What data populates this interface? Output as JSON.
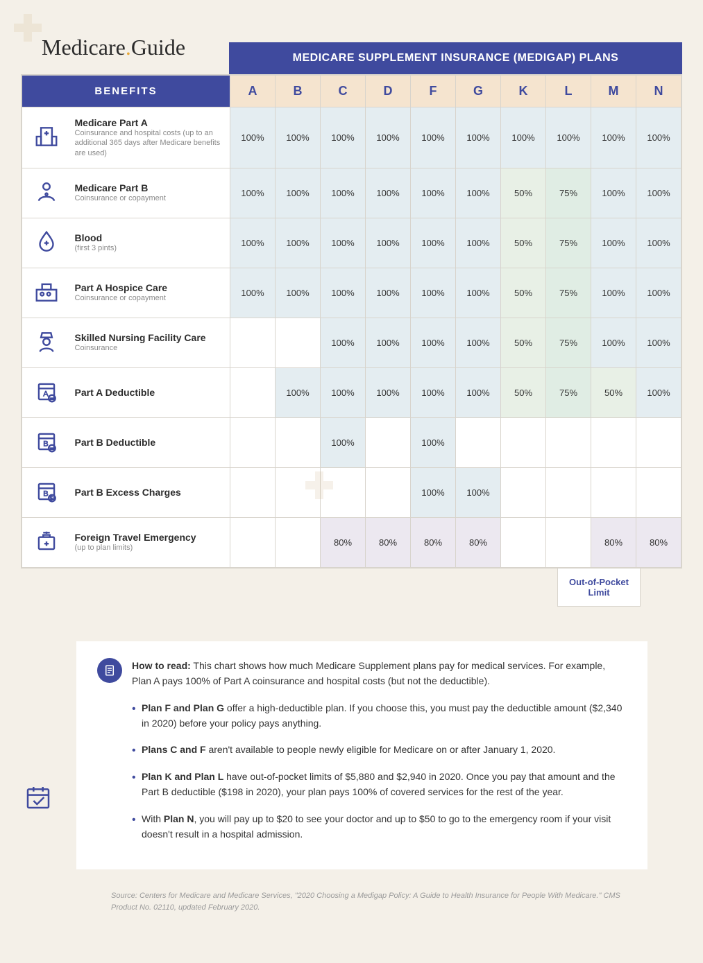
{
  "brand": {
    "name_pre": "Medicare",
    "name_post": "Guide"
  },
  "title": "MEDICARE SUPPLEMENT INSURANCE (MEDIGAP) PLANS",
  "colors": {
    "primary": "#3f4a9e",
    "header_bg": "#f5e4cf",
    "cell_100": "#e4edf1",
    "cell_50": "#e8f0e6",
    "cell_75": "#e0ede4",
    "cell_80": "#ece8f0",
    "page_bg": "#f4f0e8",
    "border": "#d8d4cc",
    "text_muted": "#8a8a8a",
    "accent_dot": "#e8a838"
  },
  "typography": {
    "logo_fontsize": 32,
    "title_fontsize": 16,
    "plan_header_fontsize": 18,
    "benefit_title_fontsize": 14,
    "benefit_sub_fontsize": 11,
    "cell_fontsize": 13,
    "notes_fontsize": 14,
    "source_fontsize": 11
  },
  "benefits_header": "BENEFITS",
  "plans": [
    "A",
    "B",
    "C",
    "D",
    "F",
    "G",
    "K",
    "L",
    "M",
    "N"
  ],
  "rows": [
    {
      "icon": "hospital",
      "title": "Medicare Part A",
      "sub": "Coinsurance and hospital costs (up to an additional 365 days after Medicare benefits are used)",
      "values": [
        "100%",
        "100%",
        "100%",
        "100%",
        "100%",
        "100%",
        "100%",
        "100%",
        "100%",
        "100%"
      ]
    },
    {
      "icon": "doctor",
      "title": "Medicare Part B",
      "sub": "Coinsurance or copayment",
      "values": [
        "100%",
        "100%",
        "100%",
        "100%",
        "100%",
        "100%",
        "50%",
        "75%",
        "100%",
        "100%"
      ]
    },
    {
      "icon": "blood",
      "title": "Blood",
      "sub": "(first 3 pints)",
      "values": [
        "100%",
        "100%",
        "100%",
        "100%",
        "100%",
        "100%",
        "50%",
        "75%",
        "100%",
        "100%"
      ]
    },
    {
      "icon": "hospice",
      "title": "Part A Hospice Care",
      "sub": "Coinsurance or copayment",
      "values": [
        "100%",
        "100%",
        "100%",
        "100%",
        "100%",
        "100%",
        "50%",
        "75%",
        "100%",
        "100%"
      ]
    },
    {
      "icon": "nurse",
      "title": "Skilled Nursing Facility Care",
      "sub": "Coinsurance",
      "values": [
        "",
        "",
        "100%",
        "100%",
        "100%",
        "100%",
        "50%",
        "75%",
        "100%",
        "100%"
      ]
    },
    {
      "icon": "deductible-a",
      "title": "Part A Deductible",
      "sub": "",
      "values": [
        "",
        "100%",
        "100%",
        "100%",
        "100%",
        "100%",
        "50%",
        "75%",
        "50%",
        "100%"
      ]
    },
    {
      "icon": "deductible-b",
      "title": "Part B Deductible",
      "sub": "",
      "values": [
        "",
        "",
        "100%",
        "",
        "100%",
        "",
        "",
        "",
        "",
        ""
      ]
    },
    {
      "icon": "excess",
      "title": "Part B Excess Charges",
      "sub": "",
      "values": [
        "",
        "",
        "",
        "",
        "100%",
        "100%",
        "",
        "",
        "",
        ""
      ]
    },
    {
      "icon": "travel",
      "title": "Foreign Travel Emergency",
      "sub": "(up to plan limits)",
      "values": [
        "",
        "",
        "80%",
        "80%",
        "80%",
        "80%",
        "",
        "",
        "80%",
        "80%"
      ]
    }
  ],
  "oop_label": "Out-of-Pocket Limit",
  "notes": {
    "lead_bold": "How to read:",
    "lead": " This chart shows how much Medicare Supplement plans pay for medical services. For example, Plan A pays 100% of Part A coinsurance and hospital costs (but not the deductible).",
    "bullets": [
      {
        "bold": "Plan F and Plan G",
        "text": " offer a high-deductible plan. If you choose this, you must pay the deductible amount ($2,340 in 2020) before your policy pays anything."
      },
      {
        "bold": "Plans C and F",
        "text": " aren't available to people newly eligible for Medicare on or after January 1, 2020."
      },
      {
        "bold": "Plan K and Plan L",
        "text": " have out-of-pocket limits of $5,880 and $2,940 in 2020. Once you pay that amount and the Part B deductible ($198 in 2020), your plan pays 100% of covered services for the rest of the year."
      },
      {
        "bold": "",
        "bold2": "Plan N",
        "pre": "With ",
        "text": ", you will pay up to $20 to see your doctor and up to $50 to go to the emergency room if your visit doesn't result in a hospital admission."
      }
    ]
  },
  "source": "Source: Centers for Medicare and Medicare Services, \"2020 Choosing a Medigap Policy: A Guide to Health Insurance for People With Medicare.\" CMS Product No. 02110, updated February 2020."
}
